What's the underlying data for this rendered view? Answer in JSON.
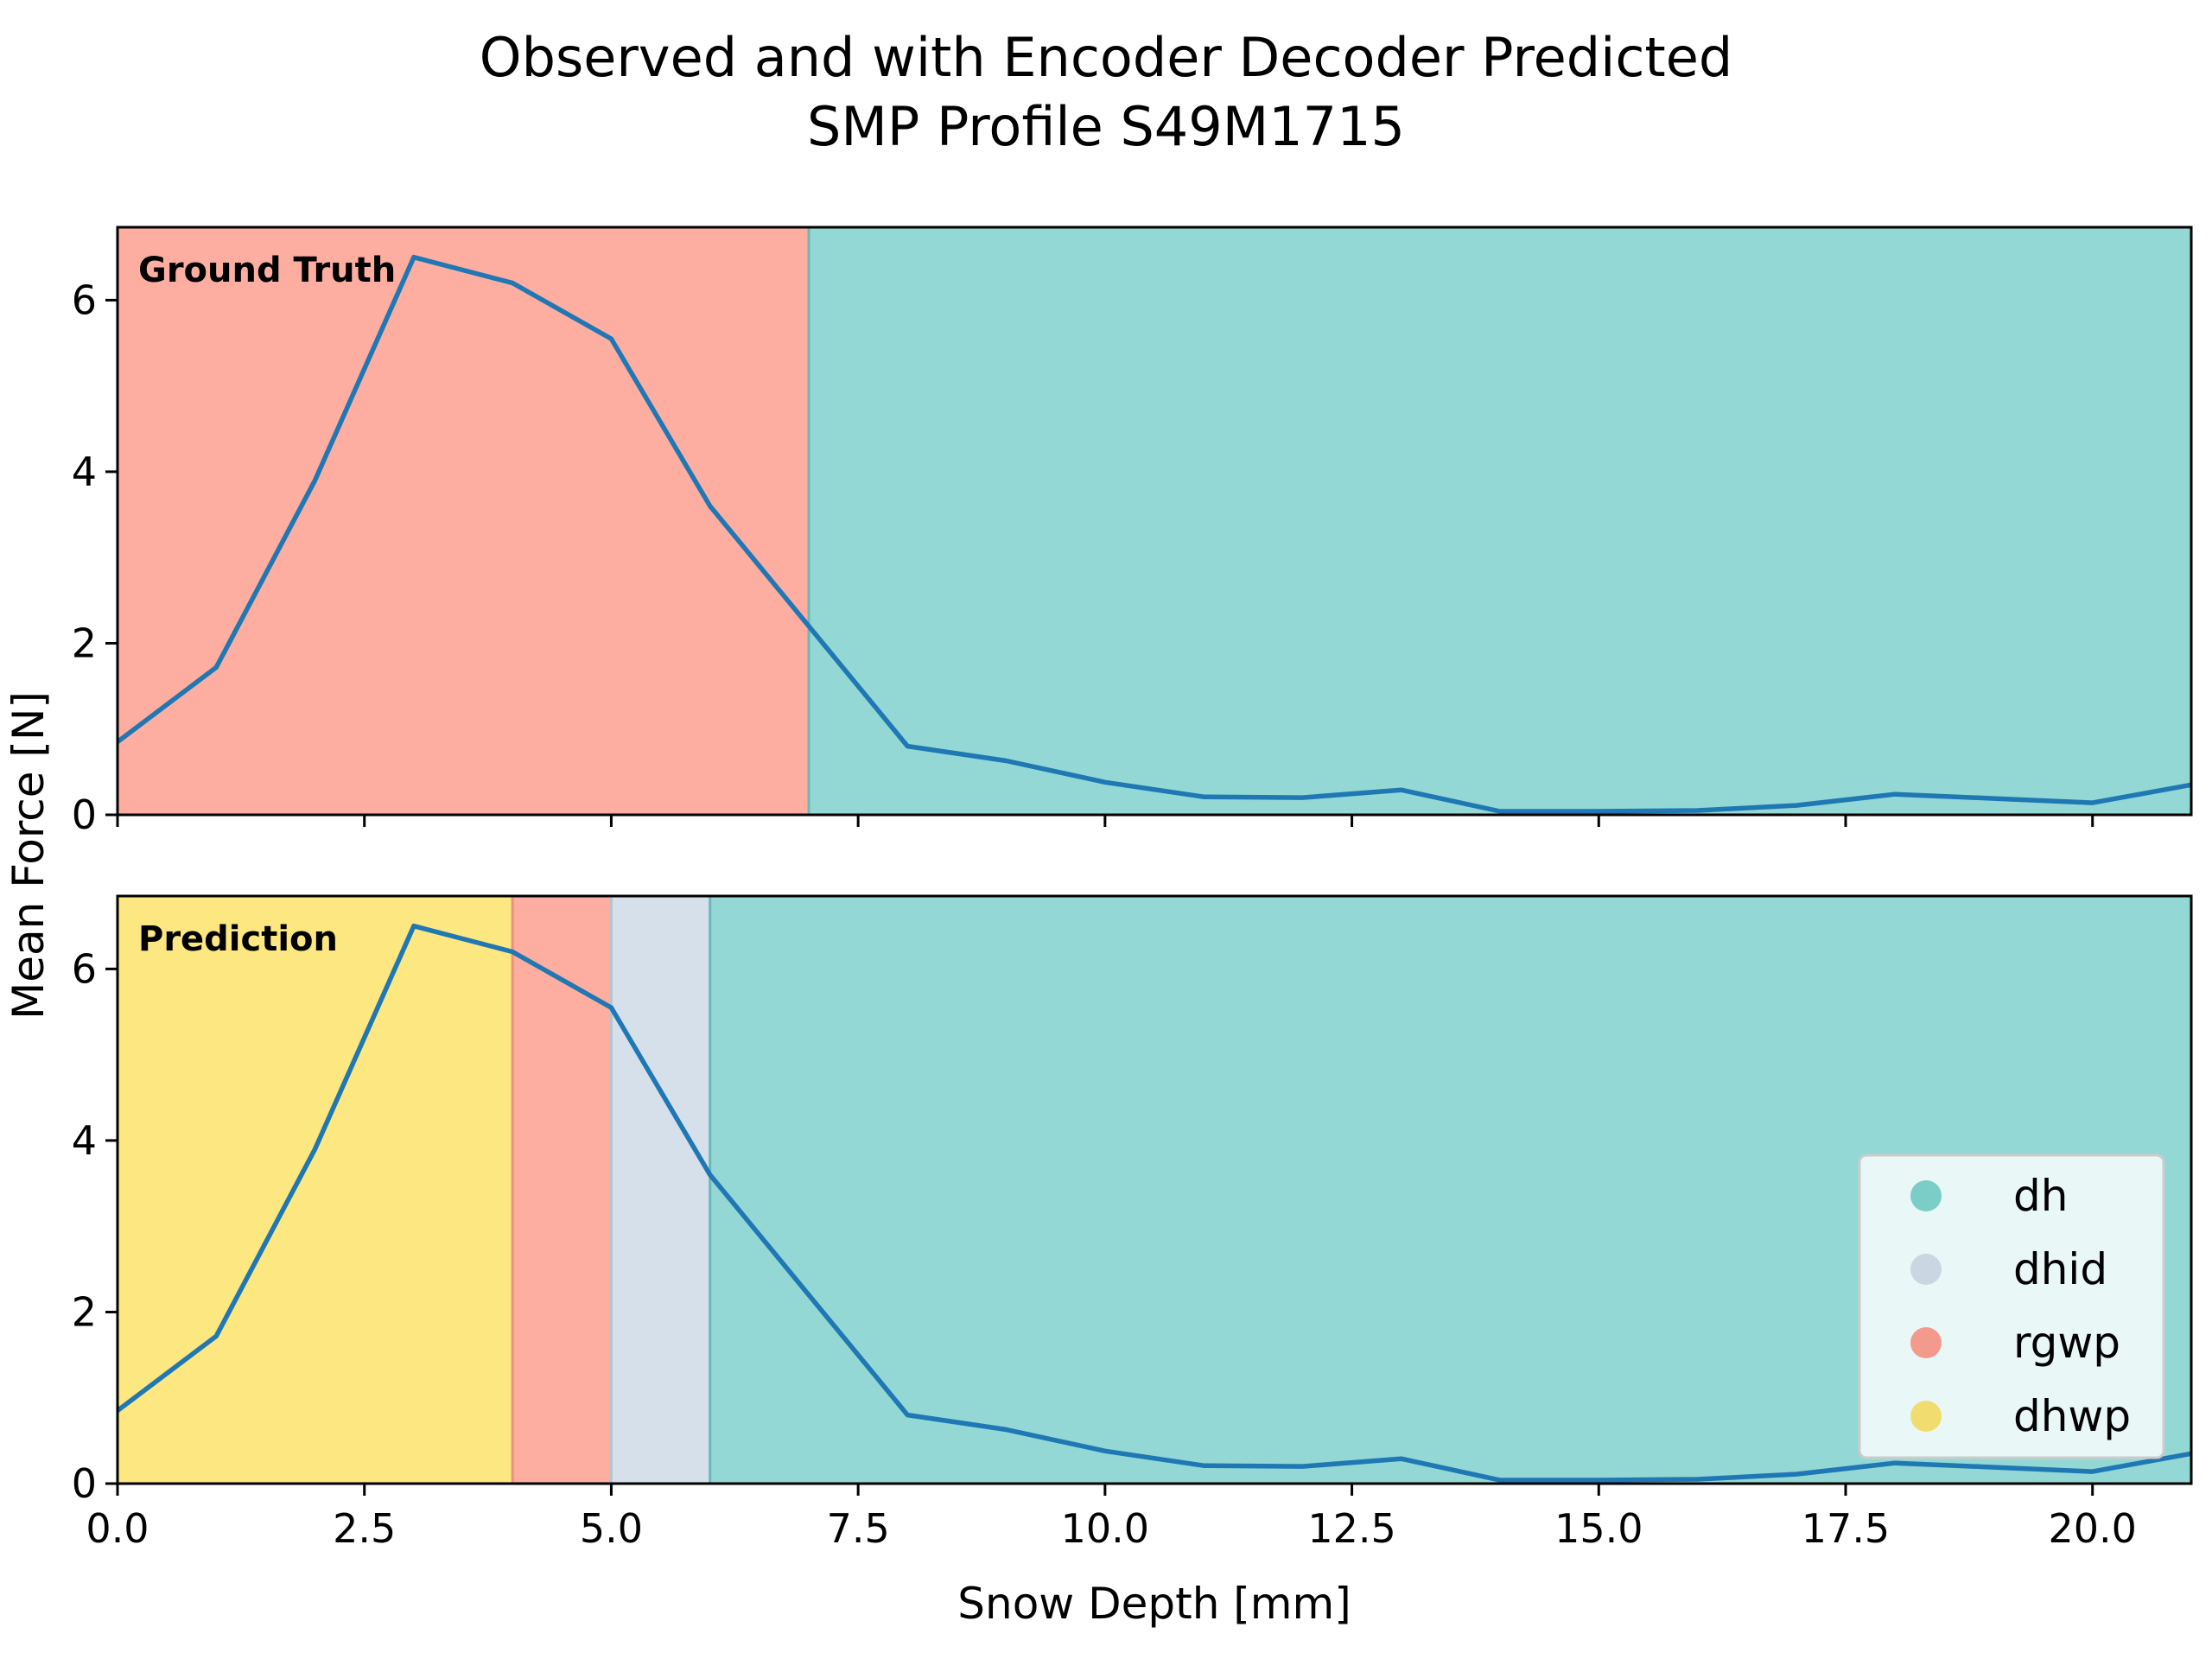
{
  "chart_data": {
    "type": "line",
    "title": "Observed and with Encoder Decoder Predicted\nSMP Profile S49M1715",
    "xlabel": "Snow Depth [mm]",
    "ylabel": "Mean Force [N]",
    "xlim": [
      0,
      21
    ],
    "ylim": [
      0,
      6.85
    ],
    "xticks": [
      0.0,
      2.5,
      5.0,
      7.5,
      10.0,
      12.5,
      15.0,
      17.5,
      20.0
    ],
    "xtick_labels": [
      "0.0",
      "2.5",
      "5.0",
      "7.5",
      "10.0",
      "12.5",
      "15.0",
      "17.5",
      "20.0"
    ],
    "yticks": [
      0,
      2,
      4,
      6
    ],
    "ytick_labels": [
      "0",
      "2",
      "4",
      "6"
    ],
    "grid": false,
    "legend_position": "bottom-right",
    "series": [
      {
        "x": [
          0,
          1,
          2,
          3,
          4,
          5,
          6,
          7,
          8,
          9,
          10,
          11,
          12,
          13,
          14,
          15,
          16,
          17,
          18,
          19,
          20,
          21
        ],
        "values": [
          0.85,
          1.72,
          3.9,
          6.5,
          6.2,
          5.55,
          3.6,
          2.2,
          0.8,
          0.63,
          0.38,
          0.21,
          0.2,
          0.29,
          0.04,
          0.04,
          0.05,
          0.11,
          0.24,
          0.19,
          0.14,
          0.35
        ],
        "color": "#1f77b4"
      }
    ],
    "panels": [
      {
        "label": "Ground Truth",
        "regions": [
          {
            "class": "rgwp",
            "from": 0,
            "to": 7
          },
          {
            "class": "dh",
            "from": 7,
            "to": 21
          }
        ]
      },
      {
        "label": "Prediction",
        "regions": [
          {
            "class": "dhwp",
            "from": 0,
            "to": 4
          },
          {
            "class": "rgwp",
            "from": 4,
            "to": 5
          },
          {
            "class": "dhid",
            "from": 5,
            "to": 6
          },
          {
            "class": "dh",
            "from": 6,
            "to": 21
          }
        ]
      }
    ],
    "legend": [
      {
        "label": "dh",
        "color": "#93d8d4"
      },
      {
        "label": "dhid",
        "color": "#d6e0eb"
      },
      {
        "label": "rgwp",
        "color": "#fdaea1"
      },
      {
        "label": "dhwp",
        "color": "#fde781"
      }
    ],
    "class_colors": {
      "dh": "#93d8d4",
      "dhid": "#d6e0eb",
      "rgwp": "#fdaea1",
      "dhwp": "#fde781"
    },
    "class_edge_colors": {
      "dh": "#6ab8b8",
      "dhid": "#b9c3cf",
      "rgwp": "#f0907f",
      "dhwp": "#f5c84a"
    },
    "legend_marker_colors": {
      "dh": "#6fc8c2",
      "dhid": "#c7d3e0",
      "rgwp": "#f3907f",
      "dhwp": "#f2d95f"
    }
  }
}
